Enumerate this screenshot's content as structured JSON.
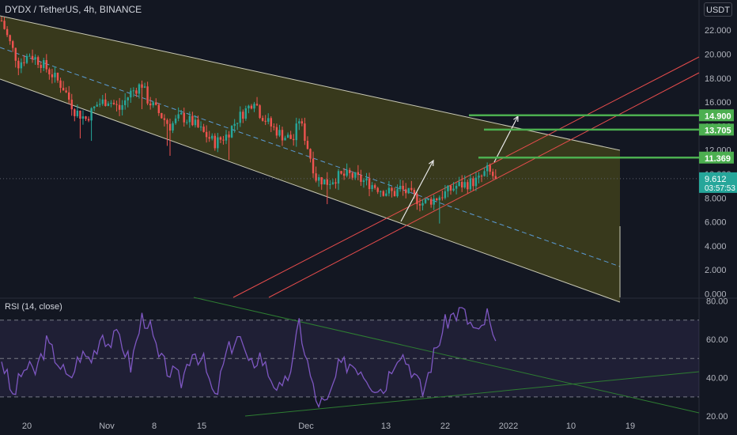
{
  "header": {
    "ticker_title": "DYDX / TetherUS, 4h, BINANCE",
    "currency_button": "USDT"
  },
  "rsi_panel": {
    "title": "RSI (14, close)"
  },
  "colors": {
    "background": "#131722",
    "channel_fill": "#3d3d1c",
    "channel_border": "#c9c9b5",
    "midline": "#5b9bd5",
    "trendline_red": "#e64c4c",
    "target_green": "#4caf50",
    "arrow": "#e8e8e8",
    "candle_up": "#26a69a",
    "candle_down": "#ef5350",
    "rsi_line": "#7e57c2",
    "current_price_bg": "#26a69a"
  },
  "chart_data": [
    {
      "type": "candlestick",
      "title": "DYDX / TetherUS, 4h, BINANCE",
      "y_axis": {
        "ticks": [
          "0.000",
          "2.000",
          "4.000",
          "6.000",
          "8.000",
          "10.000",
          "12.000",
          "14.000",
          "16.000",
          "18.000",
          "20.000",
          "22.000"
        ],
        "range": [
          0,
          23.5
        ]
      },
      "x_axis": {
        "ticks": [
          "20",
          "Nov",
          "8",
          "15",
          "Dec",
          "13",
          "22",
          "2022",
          "10",
          "19"
        ]
      },
      "price_series": {
        "anchors": [
          [
            0,
            22.8
          ],
          [
            2,
            21.5
          ],
          [
            6,
            19.2
          ],
          [
            10,
            20.0
          ],
          [
            14,
            19.3
          ],
          [
            18,
            18.3
          ],
          [
            22,
            17.2
          ],
          [
            26,
            15.3
          ],
          [
            30,
            14.6
          ],
          [
            34,
            15.8
          ],
          [
            38,
            16.2
          ],
          [
            42,
            15.4
          ],
          [
            46,
            16.8
          ],
          [
            50,
            17.5
          ],
          [
            52,
            16.2
          ],
          [
            56,
            15.1
          ],
          [
            60,
            14.0
          ],
          [
            64,
            14.8
          ],
          [
            68,
            14.3
          ],
          [
            72,
            13.4
          ],
          [
            76,
            12.6
          ],
          [
            80,
            13.2
          ],
          [
            84,
            14.6
          ],
          [
            88,
            15.6
          ],
          [
            90,
            16.3
          ],
          [
            92,
            15.1
          ],
          [
            96,
            14.0
          ],
          [
            100,
            13.2
          ],
          [
            104,
            12.9
          ],
          [
            106,
            14.6
          ],
          [
            108,
            13.1
          ],
          [
            112,
            9.7
          ],
          [
            116,
            9.3
          ],
          [
            120,
            9.8
          ],
          [
            124,
            9.9
          ],
          [
            128,
            9.5
          ],
          [
            132,
            9.1
          ],
          [
            136,
            8.6
          ],
          [
            140,
            8.4
          ],
          [
            142,
            8.8
          ],
          [
            146,
            8.2
          ],
          [
            150,
            7.6
          ],
          [
            154,
            7.9
          ],
          [
            158,
            8.4
          ],
          [
            162,
            9.0
          ],
          [
            166,
            9.2
          ],
          [
            170,
            9.5
          ],
          [
            173,
            10.3
          ],
          [
            176,
            9.61
          ]
        ],
        "last_close": "9.612",
        "countdown": "03:57:53"
      },
      "target_levels": [
        "11.369",
        "13.705",
        "14.900"
      ],
      "annotations": [
        "descending channel",
        "rising red trendlines",
        "projection arrows"
      ]
    },
    {
      "type": "line",
      "title": "RSI (14, close)",
      "y_axis": {
        "ticks": [
          "20.00",
          "40.00",
          "60.00",
          "80.00"
        ],
        "range": [
          18,
          81
        ]
      },
      "bands": [
        30,
        50,
        70
      ],
      "rsi_series": {
        "anchors": [
          [
            0,
            50
          ],
          [
            4,
            30
          ],
          [
            8,
            45
          ],
          [
            12,
            43
          ],
          [
            16,
            58
          ],
          [
            20,
            49
          ],
          [
            24,
            38
          ],
          [
            28,
            52
          ],
          [
            32,
            50
          ],
          [
            36,
            64
          ],
          [
            38,
            58
          ],
          [
            42,
            62
          ],
          [
            46,
            46
          ],
          [
            50,
            71
          ],
          [
            52,
            70
          ],
          [
            56,
            50
          ],
          [
            60,
            43
          ],
          [
            64,
            38
          ],
          [
            68,
            55
          ],
          [
            72,
            48
          ],
          [
            76,
            28
          ],
          [
            80,
            52
          ],
          [
            84,
            62
          ],
          [
            86,
            57
          ],
          [
            88,
            45
          ],
          [
            92,
            52
          ],
          [
            96,
            40
          ],
          [
            100,
            32
          ],
          [
            104,
            50
          ],
          [
            106,
            69
          ],
          [
            108,
            54
          ],
          [
            112,
            28
          ],
          [
            116,
            26
          ],
          [
            120,
            45
          ],
          [
            124,
            48
          ],
          [
            128,
            45
          ],
          [
            132,
            37
          ],
          [
            136,
            34
          ],
          [
            140,
            50
          ],
          [
            142,
            54
          ],
          [
            146,
            45
          ],
          [
            150,
            32
          ],
          [
            154,
            52
          ],
          [
            158,
            68
          ],
          [
            160,
            72
          ],
          [
            164,
            75
          ],
          [
            166,
            70
          ],
          [
            170,
            62
          ],
          [
            173,
            73
          ],
          [
            176,
            55
          ]
        ]
      }
    }
  ]
}
